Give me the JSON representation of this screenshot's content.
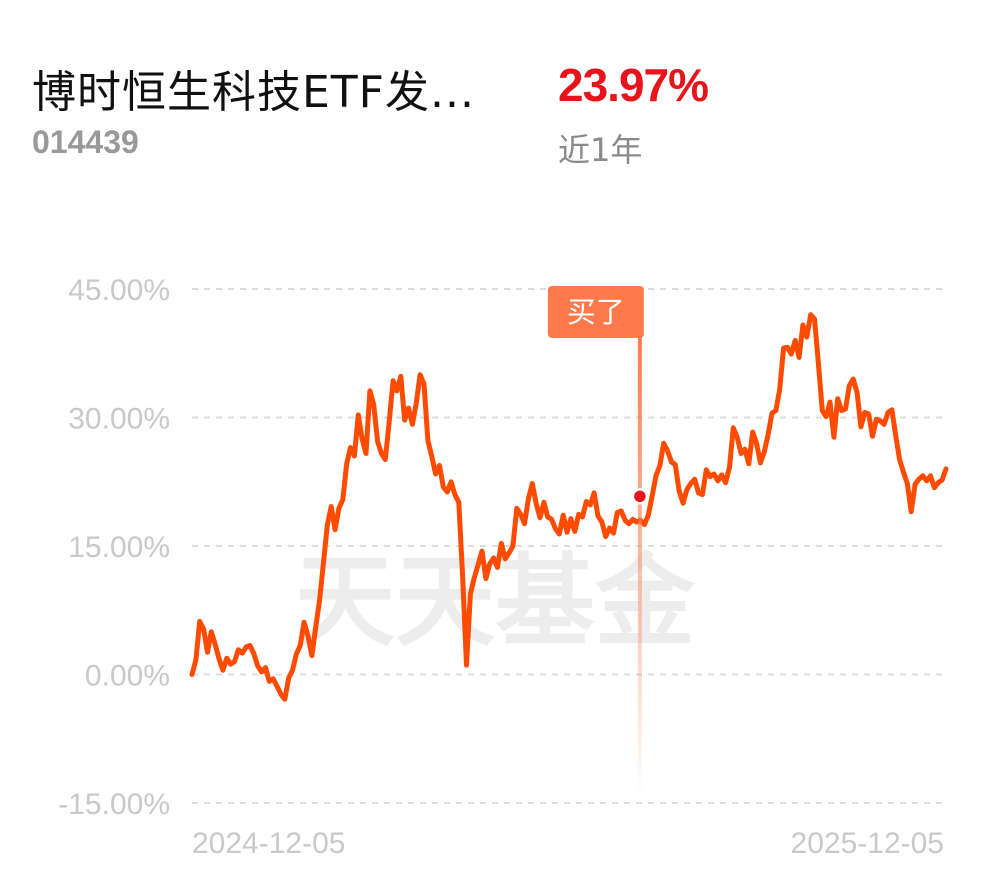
{
  "fund": {
    "name": "博时恒生科技ETF发...",
    "code": "014439",
    "return_value": "23.97%",
    "return_period": "近1年"
  },
  "watermark": "天天基金",
  "colors": {
    "line": "#ff4b00",
    "buy_marker": "#ff7a4a",
    "buy_dot": "#e8141c",
    "return_positive": "#e8141c",
    "grid": "#dddddd"
  },
  "chart_data": {
    "type": "line",
    "ylim": [
      -15,
      45
    ],
    "ytick_values": [
      45,
      30,
      15,
      0,
      -15
    ],
    "ytick_labels": [
      "45.00%",
      "30.00%",
      "15.00%",
      "0.00%",
      "-15.00%"
    ],
    "xtick_labels": [
      "2024-12-05",
      "2025-12-05"
    ],
    "grid": true,
    "annotation": {
      "label": "买了",
      "x_fraction": 0.594,
      "y": 20.8
    },
    "series": [
      {
        "values": [
          0.0,
          1.7,
          6.2,
          5.3,
          2.6,
          5.0,
          3.5,
          1.8,
          0.5,
          1.9,
          1.2,
          1.5,
          2.9,
          2.5,
          3.2,
          3.4,
          2.4,
          1.0,
          0.3,
          0.8,
          -0.8,
          -0.5,
          -1.4,
          -2.3,
          -2.9,
          -0.4,
          0.5,
          2.4,
          3.4,
          6.1,
          4.5,
          2.2,
          5.5,
          8.7,
          13.1,
          17.4,
          19.6,
          16.9,
          19.4,
          20.4,
          24.6,
          26.5,
          25.5,
          30.3,
          27.5,
          25.8,
          33.1,
          31.5,
          27.2,
          25.8,
          25.1,
          29.5,
          34.3,
          33.1,
          34.8,
          29.7,
          31.1,
          29.2,
          31.7,
          35.0,
          33.9,
          27.3,
          25.5,
          23.4,
          24.4,
          21.9,
          21.3,
          22.5,
          21.0,
          20.1,
          11.3,
          1.1,
          9.4,
          11.3,
          12.8,
          14.4,
          11.2,
          12.9,
          13.6,
          12.5,
          15.3,
          13.5,
          14.2,
          15.0,
          19.4,
          18.7,
          17.6,
          20.5,
          22.3,
          20.0,
          18.3,
          20.1,
          18.4,
          18.1,
          17.0,
          16.4,
          18.6,
          16.6,
          18.2,
          16.7,
          18.7,
          18.4,
          20.2,
          19.8,
          21.2,
          18.5,
          17.8,
          16.1,
          17.1,
          16.5,
          18.9,
          19.1,
          18.0,
          17.6,
          18.1,
          17.8,
          18.0,
          17.5,
          18.6,
          20.8,
          23.2,
          24.4,
          27.0,
          26.1,
          24.8,
          24.5,
          21.4,
          20.0,
          21.6,
          22.3,
          22.8,
          21.2,
          21.0,
          23.9,
          23.1,
          23.4,
          22.6,
          23.3,
          22.4,
          24.2,
          28.8,
          27.7,
          25.8,
          26.3,
          24.6,
          28.3,
          27.0,
          24.7,
          26.0,
          28.0,
          30.5,
          30.8,
          33.3,
          38.1,
          38.2,
          37.4,
          39.0,
          37.0,
          40.8,
          39.4,
          42.0,
          41.5,
          36.3,
          30.8,
          30.1,
          31.8,
          27.7,
          32.2,
          30.8,
          31.0,
          33.7,
          34.5,
          32.9,
          28.9,
          30.6,
          30.4,
          27.8,
          29.8,
          29.6,
          29.2,
          30.6,
          30.9,
          27.9,
          25.1,
          23.6,
          22.3,
          19.0,
          22.2,
          22.8,
          23.2,
          22.6,
          23.2,
          21.8,
          22.4,
          22.7,
          24.0
        ]
      }
    ]
  }
}
